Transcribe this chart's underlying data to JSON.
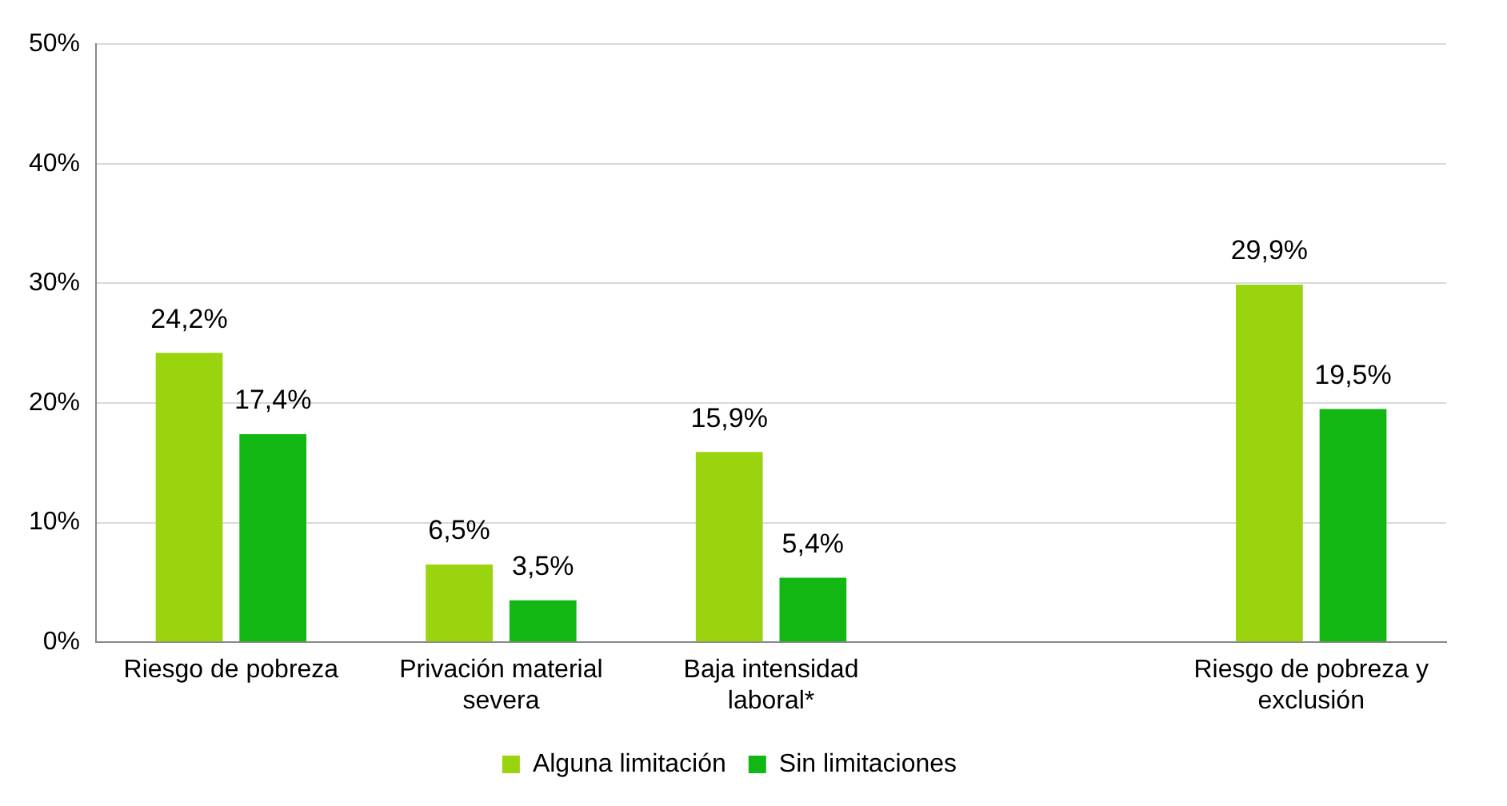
{
  "chart_data": {
    "type": "bar",
    "categories": [
      "Riesgo de pobreza",
      "Privación material severa",
      "Baja intensidad laboral*",
      null,
      "Riesgo de pobreza y exclusión"
    ],
    "series": [
      {
        "name": "Alguna limitación",
        "color": "#99d40e",
        "values": [
          24.2,
          6.5,
          15.9,
          null,
          29.9
        ],
        "value_labels": [
          "24,2%",
          "6,5%",
          "15,9%",
          null,
          "29,9%"
        ]
      },
      {
        "name": "Sin limitaciones",
        "color": "#13b713",
        "values": [
          17.4,
          3.5,
          5.4,
          null,
          19.5
        ],
        "value_labels": [
          "17,4%",
          "3,5%",
          "5,4%",
          null,
          "19,5%"
        ]
      }
    ],
    "ylim": [
      0,
      50
    ],
    "yticks": [
      {
        "value": 0,
        "label": "0%"
      },
      {
        "value": 10,
        "label": "10%"
      },
      {
        "value": 20,
        "label": "20%"
      },
      {
        "value": 30,
        "label": "30%"
      },
      {
        "value": 40,
        "label": "40%"
      },
      {
        "value": 50,
        "label": "50%"
      }
    ],
    "grid": "y",
    "legend": "bottom"
  }
}
